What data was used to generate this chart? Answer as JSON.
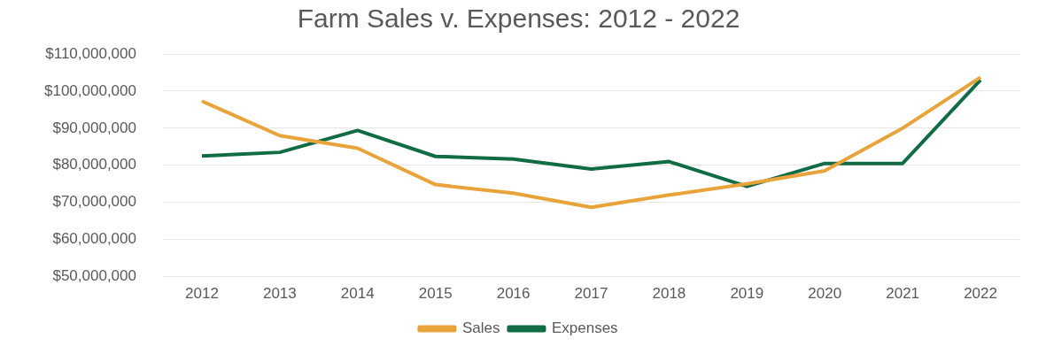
{
  "chart_data": {
    "type": "line",
    "title": "Farm Sales v. Expenses: 2012 - 2022",
    "categories": [
      "2012",
      "2013",
      "2014",
      "2015",
      "2016",
      "2017",
      "2018",
      "2019",
      "2020",
      "2021",
      "2022"
    ],
    "series": [
      {
        "name": "Sales",
        "color": "#e8a33a",
        "values": [
          97300000,
          88000000,
          84600000,
          74800000,
          72500000,
          68700000,
          72000000,
          75000000,
          78500000,
          90000000,
          103700000
        ]
      },
      {
        "name": "Expenses",
        "color": "#116b45",
        "values": [
          82500000,
          83500000,
          89400000,
          82400000,
          81700000,
          79000000,
          81000000,
          74300000,
          80500000,
          80500000,
          103000000
        ]
      }
    ],
    "ylim": [
      50000000,
      110000000
    ],
    "yticks": [
      {
        "value": 50000000,
        "label": "$50,000,000"
      },
      {
        "value": 60000000,
        "label": "$60,000,000"
      },
      {
        "value": 70000000,
        "label": "$70,000,000"
      },
      {
        "value": 80000000,
        "label": "$80,000,000"
      },
      {
        "value": 90000000,
        "label": "$90,000,000"
      },
      {
        "value": 100000000,
        "label": "$100,000,000"
      },
      {
        "value": 110000000,
        "label": "$110,000,000"
      }
    ],
    "grid": "y",
    "legend": "bottom",
    "marker": "none",
    "line_style": "solid"
  }
}
